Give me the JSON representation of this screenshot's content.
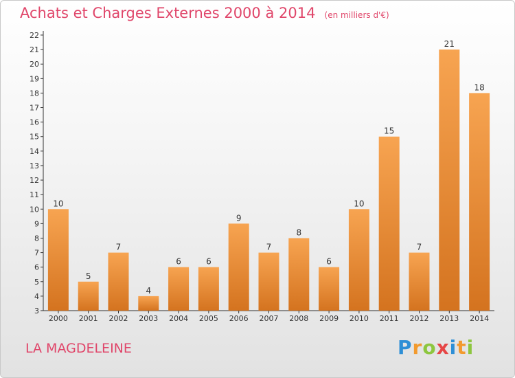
{
  "header": {
    "title": "Achats et Charges Externes 2000 à 2014",
    "subtitle": "(en milliers d'€)"
  },
  "footer": {
    "commune": "LA MAGDELEINE",
    "logo": {
      "letters": [
        "P",
        "r",
        "o",
        "x",
        "i",
        "t",
        "i"
      ],
      "colors": [
        "#2e8fd6",
        "#f29a2e",
        "#8dc63f",
        "#e64646",
        "#2e8fd6",
        "#f29a2e",
        "#8dc63f"
      ]
    }
  },
  "colors": {
    "title": "#e0466a",
    "bar_light": "#f7a451",
    "bar_dark": "#d4731f"
  },
  "chart_data": {
    "type": "bar",
    "title": "Achats et Charges Externes 2000 à 2014",
    "subtitle": "(en milliers d'€)",
    "categories": [
      "2000",
      "2001",
      "2002",
      "2003",
      "2004",
      "2005",
      "2006",
      "2007",
      "2008",
      "2009",
      "2010",
      "2011",
      "2012",
      "2013",
      "2014"
    ],
    "values": [
      10,
      5,
      7,
      4,
      6,
      6,
      9,
      7,
      8,
      6,
      10,
      15,
      7,
      21,
      18
    ],
    "ylim": [
      3,
      22
    ],
    "yticks": [
      3,
      4,
      5,
      6,
      7,
      8,
      9,
      10,
      11,
      12,
      13,
      14,
      15,
      16,
      17,
      18,
      19,
      20,
      21,
      22
    ],
    "grid": false,
    "legend": "none",
    "data_labels": true
  }
}
